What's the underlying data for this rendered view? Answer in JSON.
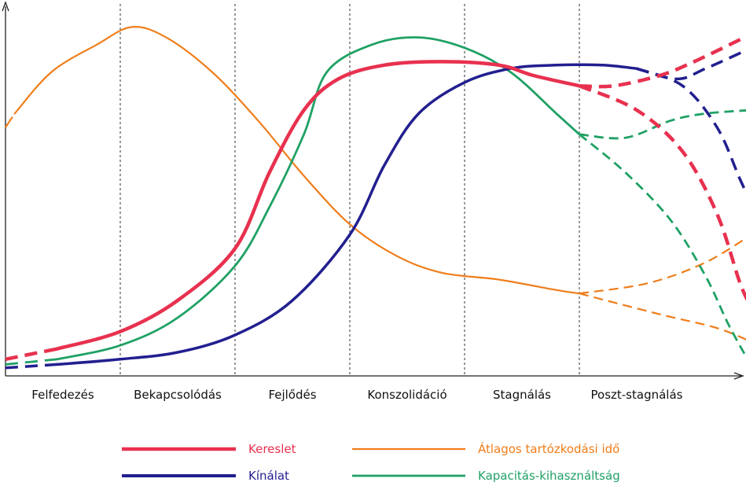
{
  "chart_data": {
    "type": "line",
    "title": "",
    "xlabel": "",
    "ylabel": "",
    "categories": [
      "Felfedezés",
      "Bekapcsolódás",
      "Fejlődés",
      "Konszolidáció",
      "Stagnálás",
      "Poszt-stagnálás"
    ],
    "x_range": [
      0,
      6.5
    ],
    "y_range": [
      0,
      1
    ],
    "grid": "vertical dashed phase separators",
    "legend_position": "bottom",
    "series": [
      {
        "name": "Kereslet",
        "color": "#e8314f",
        "solid": [
          [
            0.45,
            0.06
          ],
          [
            1,
            0.11
          ],
          [
            1.5,
            0.2
          ],
          [
            2,
            0.35
          ],
          [
            2.3,
            0.57
          ],
          [
            2.6,
            0.75
          ],
          [
            2.9,
            0.84
          ],
          [
            3.3,
            0.88
          ],
          [
            3.8,
            0.89
          ],
          [
            4.3,
            0.88
          ],
          [
            4.6,
            0.85
          ],
          [
            5,
            0.82
          ]
        ],
        "dashed_start": [
          [
            0,
            0.03
          ],
          [
            0.45,
            0.06
          ]
        ],
        "branches": [
          [
            [
              5,
              0.82
            ],
            [
              5.3,
              0.82
            ],
            [
              5.7,
              0.85
            ],
            [
              6,
              0.89
            ],
            [
              6.5,
              0.97
            ]
          ],
          [
            [
              5,
              0.82
            ],
            [
              5.5,
              0.75
            ],
            [
              5.9,
              0.63
            ],
            [
              6.2,
              0.45
            ],
            [
              6.4,
              0.25
            ],
            [
              6.5,
              0.18
            ]
          ]
        ]
      },
      {
        "name": "Kínálat",
        "color": "#221f8f",
        "solid": [
          [
            0.45,
            0.015
          ],
          [
            1,
            0.03
          ],
          [
            1.5,
            0.05
          ],
          [
            2,
            0.1
          ],
          [
            2.5,
            0.2
          ],
          [
            3,
            0.39
          ],
          [
            3.3,
            0.59
          ],
          [
            3.6,
            0.74
          ],
          [
            4,
            0.83
          ],
          [
            4.4,
            0.87
          ],
          [
            4.8,
            0.88
          ],
          [
            5.2,
            0.88
          ],
          [
            5.5,
            0.87
          ]
        ],
        "dashed_start": [
          [
            0,
            0.005
          ],
          [
            0.45,
            0.015
          ]
        ],
        "branches": [
          [
            [
              5.5,
              0.87
            ],
            [
              5.85,
              0.84
            ],
            [
              6.1,
              0.87
            ],
            [
              6.5,
              0.93
            ]
          ],
          [
            [
              5.5,
              0.87
            ],
            [
              5.9,
              0.82
            ],
            [
              6.2,
              0.7
            ],
            [
              6.4,
              0.55
            ],
            [
              6.5,
              0.48
            ]
          ]
        ]
      },
      {
        "name": "Átlagos tartózkodási idő",
        "color": "#ef7d1a",
        "solid": [
          [
            0.08,
            0.74
          ],
          [
            0.4,
            0.86
          ],
          [
            0.8,
            0.94
          ],
          [
            1.1,
            0.99
          ],
          [
            1.4,
            0.96
          ],
          [
            1.8,
            0.86
          ],
          [
            2.2,
            0.72
          ],
          [
            2.6,
            0.56
          ],
          [
            3,
            0.42
          ],
          [
            3.4,
            0.33
          ],
          [
            3.8,
            0.28
          ],
          [
            4.3,
            0.26
          ],
          [
            4.8,
            0.23
          ],
          [
            5,
            0.22
          ]
        ],
        "dashed_start": [
          [
            0,
            0.7
          ],
          [
            0.08,
            0.74
          ]
        ],
        "branches": [
          [
            [
              5,
              0.22
            ],
            [
              5.6,
              0.25
            ],
            [
              6.1,
              0.31
            ],
            [
              6.5,
              0.39
            ]
          ],
          [
            [
              5,
              0.22
            ],
            [
              5.7,
              0.16
            ],
            [
              6.2,
              0.12
            ],
            [
              6.5,
              0.08
            ]
          ]
        ]
      },
      {
        "name": "Kapacitás-kihasználtság",
        "color": "#1fa165",
        "solid": [
          [
            0.45,
            0.03
          ],
          [
            1,
            0.07
          ],
          [
            1.5,
            0.15
          ],
          [
            2,
            0.3
          ],
          [
            2.3,
            0.47
          ],
          [
            2.6,
            0.68
          ],
          [
            2.8,
            0.86
          ],
          [
            3.2,
            0.94
          ],
          [
            3.6,
            0.96
          ],
          [
            4,
            0.93
          ],
          [
            4.4,
            0.86
          ],
          [
            4.8,
            0.74
          ],
          [
            5,
            0.68
          ]
        ],
        "dashed_start": [
          [
            0,
            0.015
          ],
          [
            0.45,
            0.03
          ]
        ],
        "branches": [
          [
            [
              5,
              0.68
            ],
            [
              5.4,
              0.67
            ],
            [
              5.8,
              0.72
            ],
            [
              6.1,
              0.74
            ],
            [
              6.5,
              0.75
            ]
          ],
          [
            [
              5,
              0.68
            ],
            [
              5.4,
              0.57
            ],
            [
              5.8,
              0.43
            ],
            [
              6.1,
              0.27
            ],
            [
              6.3,
              0.13
            ],
            [
              6.5,
              0.01
            ]
          ]
        ]
      }
    ]
  }
}
